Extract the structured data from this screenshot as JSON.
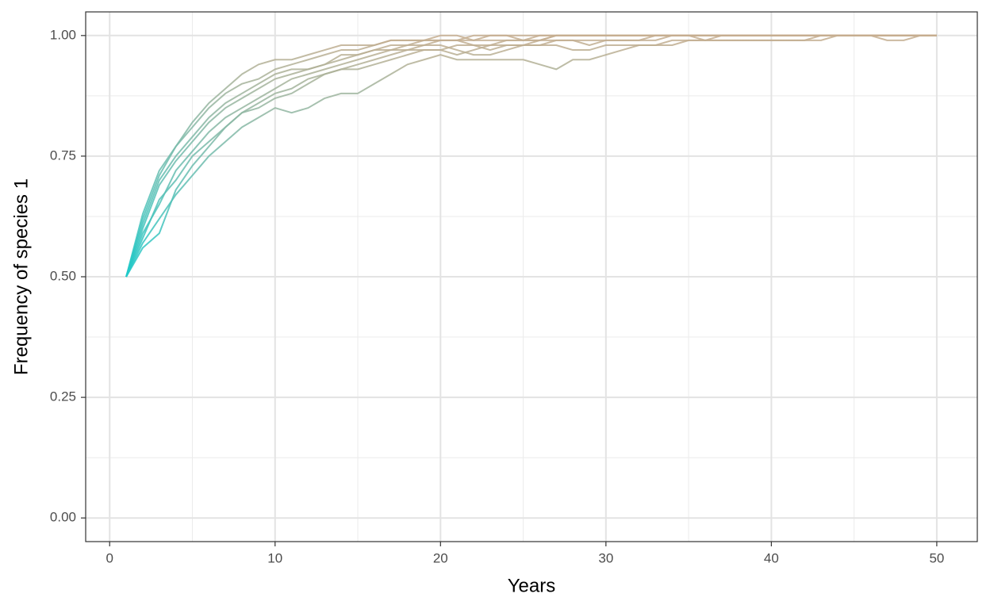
{
  "chart_data": {
    "type": "line",
    "xlabel": "Years",
    "ylabel": "Frequency of species 1",
    "x": [
      1,
      2,
      3,
      4,
      5,
      6,
      7,
      8,
      9,
      10,
      11,
      12,
      13,
      14,
      15,
      16,
      17,
      18,
      19,
      20,
      21,
      22,
      23,
      24,
      25,
      26,
      27,
      28,
      29,
      30,
      31,
      32,
      33,
      34,
      35,
      36,
      37,
      38,
      39,
      40,
      41,
      42,
      43,
      44,
      45,
      46,
      47,
      48,
      49,
      50
    ],
    "series": [
      {
        "values": [
          0.5,
          0.62,
          0.71,
          0.77,
          0.82,
          0.86,
          0.89,
          0.92,
          0.94,
          0.95,
          0.95,
          0.96,
          0.97,
          0.98,
          0.98,
          0.98,
          0.99,
          0.99,
          0.99,
          1.0,
          1.0,
          0.99,
          1.0,
          1.0,
          1.0,
          1.0,
          1.0,
          1.0,
          1.0,
          1.0,
          1.0,
          1.0,
          1.0,
          1.0,
          1.0,
          1.0,
          1.0,
          1.0,
          1.0,
          1.0,
          1.0,
          1.0,
          1.0,
          1.0,
          1.0,
          1.0,
          1.0,
          1.0,
          1.0,
          1.0
        ]
      },
      {
        "values": [
          0.5,
          0.57,
          0.62,
          0.67,
          0.71,
          0.75,
          0.78,
          0.81,
          0.83,
          0.85,
          0.84,
          0.85,
          0.87,
          0.88,
          0.88,
          0.9,
          0.92,
          0.94,
          0.95,
          0.96,
          0.95,
          0.95,
          0.95,
          0.95,
          0.95,
          0.94,
          0.93,
          0.95,
          0.95,
          0.96,
          0.97,
          0.98,
          0.98,
          0.98,
          0.99,
          0.99,
          0.99,
          0.99,
          0.99,
          0.99,
          0.99,
          0.99,
          1.0,
          1.0,
          1.0,
          1.0,
          1.0,
          1.0,
          1.0,
          1.0
        ]
      },
      {
        "values": [
          0.5,
          0.6,
          0.69,
          0.74,
          0.78,
          0.82,
          0.85,
          0.87,
          0.89,
          0.91,
          0.92,
          0.93,
          0.94,
          0.95,
          0.96,
          0.97,
          0.97,
          0.98,
          0.98,
          0.98,
          0.97,
          0.96,
          0.96,
          0.97,
          0.98,
          0.98,
          0.98,
          0.97,
          0.97,
          0.98,
          0.98,
          0.98,
          0.98,
          0.99,
          0.99,
          0.99,
          0.99,
          0.99,
          0.99,
          0.99,
          0.99,
          0.99,
          0.99,
          1.0,
          1.0,
          1.0,
          0.99,
          0.99,
          1.0,
          1.0
        ]
      },
      {
        "values": [
          0.5,
          0.59,
          0.65,
          0.72,
          0.76,
          0.8,
          0.83,
          0.85,
          0.87,
          0.89,
          0.91,
          0.92,
          0.93,
          0.94,
          0.95,
          0.96,
          0.97,
          0.97,
          0.98,
          0.99,
          0.99,
          0.99,
          0.99,
          0.99,
          0.99,
          1.0,
          1.0,
          1.0,
          1.0,
          1.0,
          1.0,
          1.0,
          1.0,
          1.0,
          1.0,
          1.0,
          1.0,
          1.0,
          1.0,
          1.0,
          1.0,
          1.0,
          1.0,
          1.0,
          1.0,
          1.0,
          1.0,
          1.0,
          1.0,
          1.0
        ]
      },
      {
        "values": [
          0.5,
          0.61,
          0.7,
          0.75,
          0.79,
          0.83,
          0.86,
          0.88,
          0.9,
          0.92,
          0.93,
          0.93,
          0.94,
          0.96,
          0.96,
          0.97,
          0.98,
          0.98,
          0.99,
          0.99,
          0.99,
          1.0,
          1.0,
          1.0,
          0.99,
          0.99,
          1.0,
          1.0,
          1.0,
          1.0,
          1.0,
          1.0,
          1.0,
          1.0,
          1.0,
          1.0,
          1.0,
          1.0,
          1.0,
          1.0,
          1.0,
          1.0,
          1.0,
          1.0,
          1.0,
          1.0,
          1.0,
          1.0,
          1.0,
          1.0
        ]
      },
      {
        "values": [
          0.5,
          0.56,
          0.59,
          0.68,
          0.73,
          0.77,
          0.81,
          0.84,
          0.86,
          0.88,
          0.89,
          0.91,
          0.92,
          0.93,
          0.94,
          0.95,
          0.96,
          0.97,
          0.97,
          0.97,
          0.96,
          0.97,
          0.98,
          0.98,
          0.98,
          0.99,
          0.99,
          0.99,
          0.98,
          0.99,
          0.99,
          0.99,
          0.99,
          1.0,
          1.0,
          1.0,
          1.0,
          1.0,
          1.0,
          1.0,
          1.0,
          1.0,
          1.0,
          1.0,
          1.0,
          1.0,
          1.0,
          1.0,
          1.0,
          1.0
        ]
      },
      {
        "values": [
          0.5,
          0.63,
          0.72,
          0.77,
          0.81,
          0.85,
          0.88,
          0.9,
          0.91,
          0.93,
          0.94,
          0.95,
          0.96,
          0.97,
          0.97,
          0.98,
          0.99,
          0.99,
          0.99,
          0.99,
          0.99,
          0.98,
          0.98,
          0.99,
          0.99,
          0.99,
          1.0,
          1.0,
          1.0,
          1.0,
          1.0,
          1.0,
          1.0,
          1.0,
          1.0,
          1.0,
          1.0,
          1.0,
          1.0,
          1.0,
          1.0,
          1.0,
          1.0,
          1.0,
          1.0,
          1.0,
          1.0,
          1.0,
          1.0,
          1.0
        ]
      },
      {
        "values": [
          0.5,
          0.58,
          0.66,
          0.7,
          0.75,
          0.78,
          0.81,
          0.84,
          0.85,
          0.87,
          0.88,
          0.9,
          0.92,
          0.93,
          0.93,
          0.94,
          0.95,
          0.96,
          0.97,
          0.97,
          0.98,
          0.98,
          0.97,
          0.98,
          0.98,
          0.98,
          0.99,
          0.99,
          0.99,
          0.99,
          0.99,
          0.99,
          1.0,
          1.0,
          1.0,
          0.99,
          1.0,
          1.0,
          1.0,
          1.0,
          1.0,
          1.0,
          1.0,
          1.0,
          1.0,
          1.0,
          1.0,
          1.0,
          1.0,
          1.0
        ]
      }
    ],
    "color_low": "#1ecaca",
    "color_high": "#c6ad8f",
    "xlim": [
      -1.45,
      52.45
    ],
    "ylim": [
      -0.049,
      1.049
    ],
    "xticks": [
      0,
      10,
      20,
      30,
      40,
      50
    ],
    "yticks": [
      {
        "value": 0,
        "label": "0.00"
      },
      {
        "value": 0.25,
        "label": "0.25"
      },
      {
        "value": 0.5,
        "label": "0.50"
      },
      {
        "value": 0.75,
        "label": "0.75"
      },
      {
        "value": 1,
        "label": "1.00"
      }
    ],
    "x_minor_grid": [
      5,
      15,
      25,
      35,
      45
    ],
    "y_minor_grid": [
      0.125,
      0.375,
      0.625,
      0.875
    ],
    "grid": true
  }
}
